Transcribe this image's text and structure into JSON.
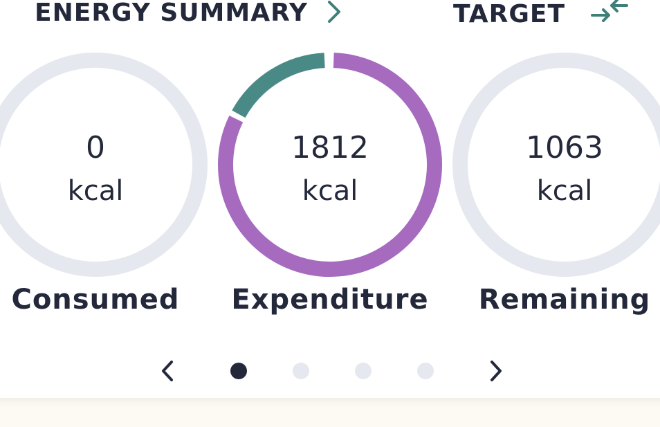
{
  "header": {
    "title": "ENERGY SUMMARY",
    "target": "TARGET"
  },
  "rings": [
    {
      "value": 0,
      "unit": "kcal",
      "label": "Consumed"
    },
    {
      "value": 1812,
      "unit": "kcal",
      "label": "Expenditure"
    },
    {
      "value": 1063,
      "unit": "kcal",
      "label": "Remaining"
    }
  ]
}
